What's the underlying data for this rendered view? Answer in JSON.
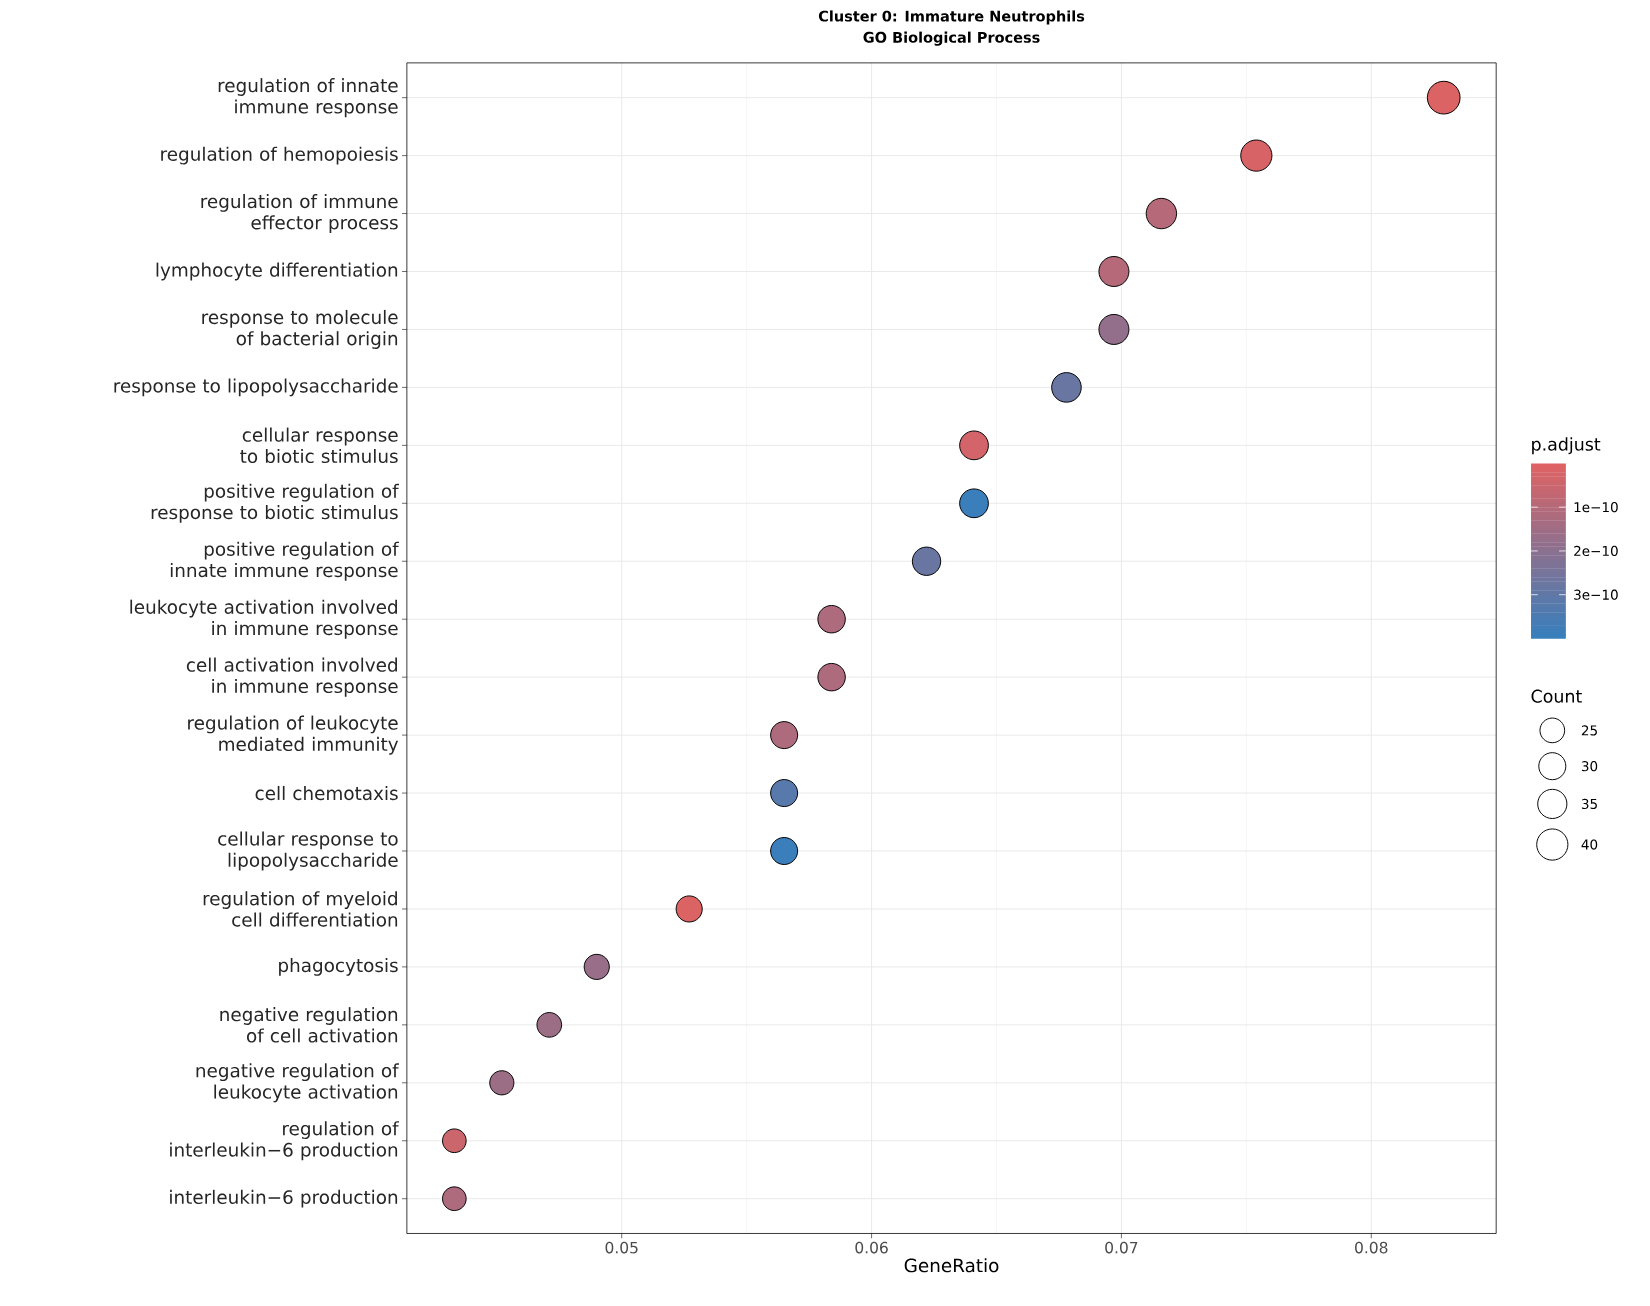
{
  "chart_data": {
    "type": "bubble",
    "orientation": "horizontal",
    "title": "Cluster 0: Immature Neutrophils",
    "subtitle": "GO Biological Process",
    "xlabel": "GeneRatio",
    "clabel": "p.adjust",
    "legend_title": "Count",
    "categories": [
      "regulation of innate immune response",
      "regulation of hemopoiesis",
      "regulation of immune effector process",
      "lymphocyte differentiation",
      "response to molecule of bacterial origin",
      "response to lipopolysaccharide",
      "cellular response to biotic stimulus",
      "positive regulation of response to biotic stimulus",
      "positive regulation of innate immune response",
      "leukocyte activation involved in immune response",
      "cell activation involved in immune response",
      "regulation of leukocyte mediated immunity",
      "cell chemotaxis",
      "cellular response to lipopolysaccharide",
      "regulation of myeloid cell differentiation",
      "phagocytosis",
      "negative regulation of cell activation",
      "negative regulation of leukocyte activation",
      "regulation of interleukin−6 production",
      "interleukin−6 production"
    ],
    "values": [
      0.0829,
      0.0754,
      0.0716,
      0.0697,
      0.0697,
      0.0678,
      0.0641,
      0.0641,
      0.0622,
      0.0584,
      0.0584,
      0.0565,
      0.0565,
      0.0565,
      0.0527,
      0.049,
      0.0471,
      0.0452,
      0.0433,
      0.0433
    ],
    "sizes": [
      44,
      40,
      38,
      37,
      37,
      36,
      34,
      34,
      33,
      31,
      31,
      30,
      30,
      30,
      28,
      26,
      25,
      24,
      23,
      23
    ],
    "size_legend": [
      25,
      30,
      35,
      40
    ],
    "cvalues": [
      1e-11,
      2e-11,
      1e-10,
      1e-10,
      1.8e-10,
      2.8e-10,
      3e-11,
      3.9e-10,
      2.8e-10,
      1.2e-10,
      1.2e-10,
      1.2e-10,
      3.2e-10,
      3.9e-10,
      1e-11,
      1.7e-10,
      1.6e-10,
      1.6e-10,
      5e-11,
      1.2e-10
    ],
    "clim": [
      0,
      4e-10
    ],
    "cticks": [
      {
        "value": 1e-10,
        "label": "1e−10"
      },
      {
        "value": 2e-10,
        "label": "2e−10"
      },
      {
        "value": 3e-10,
        "label": "3e−10"
      }
    ],
    "xlim": [
      0.0414,
      0.085
    ],
    "xticks": [
      0.05,
      0.06,
      0.07,
      0.08
    ],
    "grid": true,
    "marker": "circle"
  }
}
